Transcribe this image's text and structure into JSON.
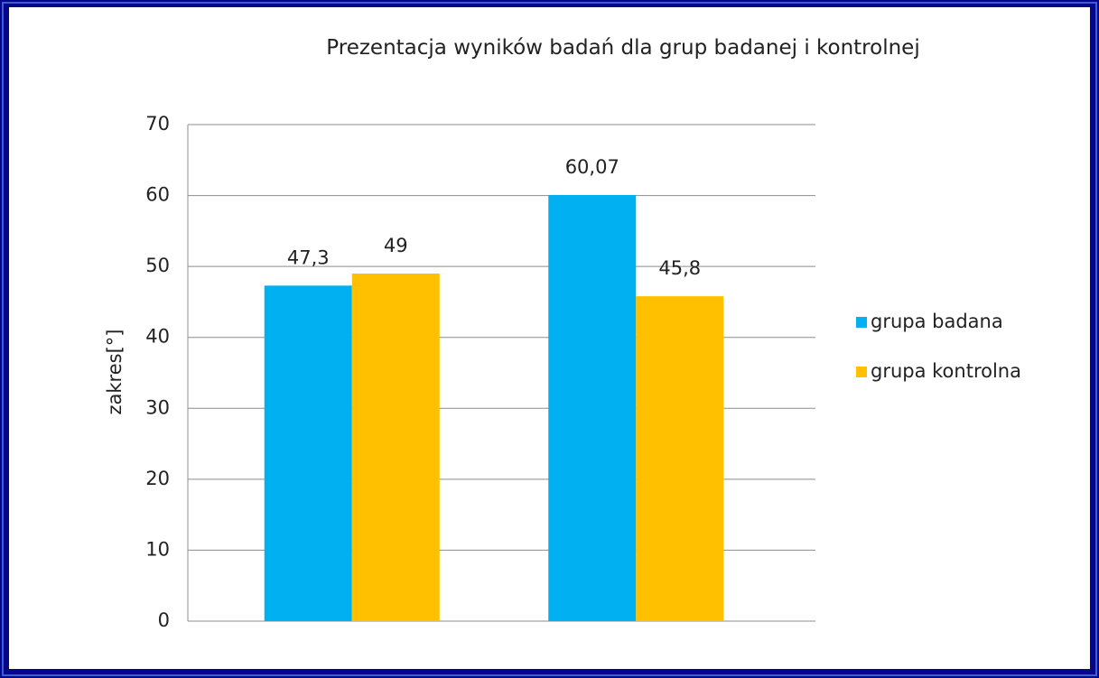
{
  "chart_data": {
    "type": "bar",
    "title": "Prezentacja wyników badań dla grup badanej i kontrolnej",
    "y_label": "zakres[°]",
    "categories": [
      null,
      null
    ],
    "series": [
      {
        "name": "grupa badana",
        "color": "#00b0f0",
        "values": [
          47.3,
          60.07
        ],
        "value_labels": [
          "47,3",
          "60,07"
        ]
      },
      {
        "name": "grupa kontrolna",
        "color": "#ffc000",
        "values": [
          49,
          45.8
        ],
        "value_labels": [
          "49",
          "45,8"
        ]
      }
    ],
    "ylim": [
      0,
      70
    ],
    "yticks": [
      0,
      10,
      20,
      30,
      40,
      50,
      60,
      70
    ],
    "grid": true,
    "legend": "right"
  }
}
